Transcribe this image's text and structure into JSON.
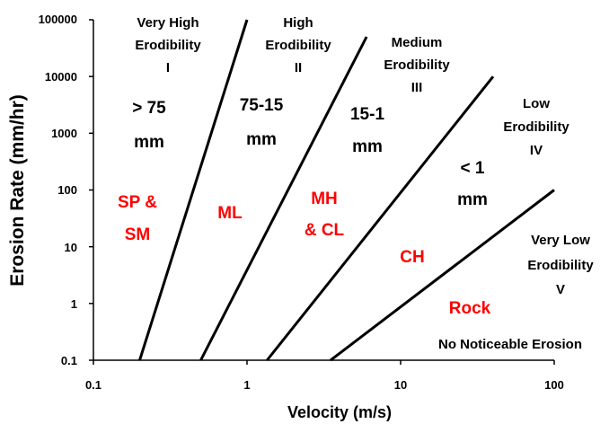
{
  "chart_data": {
    "type": "line",
    "title": "",
    "xlabel": "Velocity (m/s)",
    "ylabel": "Erosion Rate (mm/hr)",
    "x_scale": "log",
    "y_scale": "log",
    "xlim": [
      0.1,
      100
    ],
    "ylim": [
      0.1,
      100000
    ],
    "x_ticks": [
      "0.1",
      "1",
      "10",
      "100"
    ],
    "y_ticks": [
      "0.1",
      "1",
      "10",
      "100",
      "1000",
      "10000",
      "100000"
    ],
    "grid": false,
    "legend": "none",
    "line_color": "#000000",
    "series": [
      {
        "x": [
          0.2,
          1.0
        ],
        "y": [
          0.1,
          100000
        ]
      },
      {
        "x": [
          0.5,
          6.0
        ],
        "y": [
          0.1,
          50000
        ]
      },
      {
        "x": [
          1.35,
          40.0
        ],
        "y": [
          0.1,
          10000
        ]
      },
      {
        "x": [
          3.5,
          100.0
        ],
        "y": [
          0.1,
          100
        ]
      }
    ],
    "zones": [
      {
        "lines": [
          "Very High",
          "Erodibility",
          "I"
        ]
      },
      {
        "lines": [
          "High",
          "Erodibility",
          "II"
        ]
      },
      {
        "lines": [
          "Medium",
          "Erodibility",
          "III"
        ]
      },
      {
        "lines": [
          "Low",
          "Erodibility",
          "IV"
        ]
      },
      {
        "lines": [
          "Very Low",
          "Erodibility",
          "V"
        ]
      }
    ],
    "grain_sizes": [
      {
        "lines": [
          "> 75",
          "mm"
        ]
      },
      {
        "lines": [
          "75-15",
          "mm"
        ]
      },
      {
        "lines": [
          "15-1",
          "mm"
        ]
      },
      {
        "lines": [
          "< 1",
          "mm"
        ]
      }
    ],
    "soil_color": "#ff0000",
    "soils": [
      {
        "lines": [
          "SP &",
          "SM"
        ]
      },
      {
        "lines": [
          "ML"
        ]
      },
      {
        "lines": [
          "MH",
          "& CL"
        ]
      },
      {
        "lines": [
          "CH"
        ]
      },
      {
        "lines": [
          "Rock"
        ]
      }
    ],
    "note": "No Noticeable Erosion"
  }
}
